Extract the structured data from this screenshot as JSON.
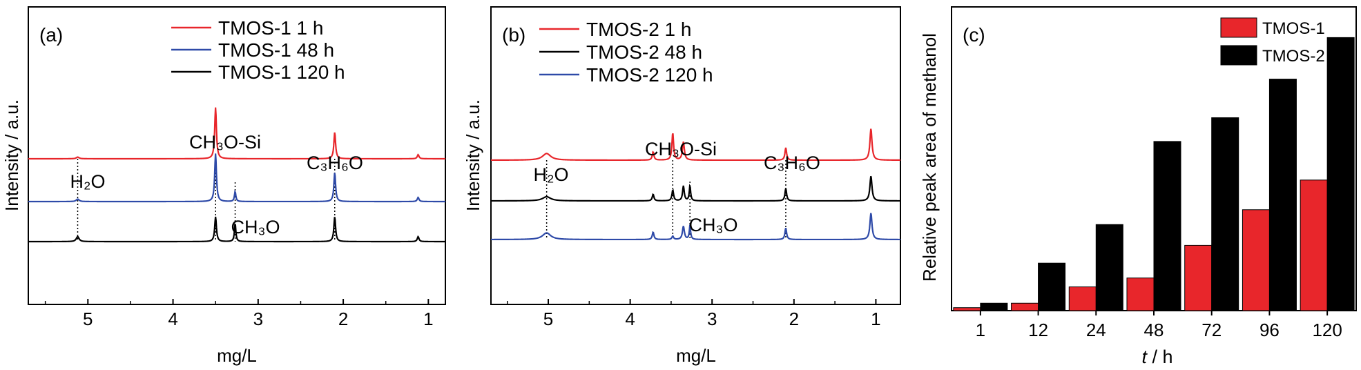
{
  "chart_data": [
    {
      "type": "line",
      "panel_label": "(a)",
      "xlabel": "mg/L",
      "ylabel": "Intensity / a.u.",
      "xlim": [
        5.7,
        0.8
      ],
      "x_reversed": true,
      "x_ticks": [
        5,
        4,
        3,
        2,
        1
      ],
      "y_ticks": "none",
      "grid": false,
      "legend_position": "top-right",
      "series": [
        {
          "name": "TMOS-1 1 h",
          "color": "#e8262b",
          "peaks": [
            {
              "x": 5.12,
              "h": 0.02,
              "w": 0.02
            },
            {
              "x": 3.5,
              "h": 0.62,
              "w": 0.012
            },
            {
              "x": 2.1,
              "h": 0.32,
              "w": 0.012
            },
            {
              "x": 1.12,
              "h": 0.05,
              "w": 0.012
            }
          ]
        },
        {
          "name": "TMOS-1 48 h",
          "color": "#2e4aa8",
          "peaks": [
            {
              "x": 5.12,
              "h": 0.03,
              "w": 0.02
            },
            {
              "x": 3.5,
              "h": 0.58,
              "w": 0.012
            },
            {
              "x": 3.27,
              "h": 0.12,
              "w": 0.01
            },
            {
              "x": 2.1,
              "h": 0.35,
              "w": 0.012
            },
            {
              "x": 1.12,
              "h": 0.05,
              "w": 0.012
            }
          ]
        },
        {
          "name": "TMOS-1 120 h",
          "color": "#000000",
          "peaks": [
            {
              "x": 5.12,
              "h": 0.06,
              "w": 0.02
            },
            {
              "x": 3.5,
              "h": 0.3,
              "w": 0.012
            },
            {
              "x": 3.27,
              "h": 0.22,
              "w": 0.01
            },
            {
              "x": 2.1,
              "h": 0.3,
              "w": 0.012
            },
            {
              "x": 1.12,
              "h": 0.06,
              "w": 0.012
            }
          ]
        }
      ],
      "annotations": [
        {
          "text": "H₂O",
          "x": 5.12
        },
        {
          "text": "CH₃O-Si",
          "x": 3.5
        },
        {
          "text": "C₃H₆O",
          "x": 2.1
        },
        {
          "text": "CH₃O",
          "x": 3.27
        }
      ]
    },
    {
      "type": "line",
      "panel_label": "(b)",
      "xlabel": "mg/L",
      "ylabel": "Intensity / a.u.",
      "xlim": [
        5.7,
        0.7
      ],
      "x_reversed": true,
      "x_ticks": [
        5,
        4,
        3,
        2,
        1
      ],
      "y_ticks": "none",
      "grid": false,
      "legend_position": "top-right",
      "series": [
        {
          "name": "TMOS-2 1 h",
          "color": "#e8262b",
          "peaks": [
            {
              "x": 5.02,
              "h": 0.08,
              "w": 0.06
            },
            {
              "x": 3.72,
              "h": 0.1,
              "w": 0.012
            },
            {
              "x": 3.48,
              "h": 0.33,
              "w": 0.012
            },
            {
              "x": 3.35,
              "h": 0.22,
              "w": 0.014
            },
            {
              "x": 2.1,
              "h": 0.15,
              "w": 0.012
            },
            {
              "x": 1.06,
              "h": 0.38,
              "w": 0.015
            }
          ]
        },
        {
          "name": "TMOS-2 48 h",
          "color": "#000000",
          "peaks": [
            {
              "x": 5.02,
              "h": 0.05,
              "w": 0.06
            },
            {
              "x": 3.72,
              "h": 0.08,
              "w": 0.012
            },
            {
              "x": 3.48,
              "h": 0.13,
              "w": 0.012
            },
            {
              "x": 3.35,
              "h": 0.18,
              "w": 0.012
            },
            {
              "x": 3.27,
              "h": 0.18,
              "w": 0.01
            },
            {
              "x": 2.1,
              "h": 0.15,
              "w": 0.012
            },
            {
              "x": 1.06,
              "h": 0.3,
              "w": 0.015
            }
          ]
        },
        {
          "name": "TMOS-2 120 h",
          "color": "#2e4aa8",
          "peaks": [
            {
              "x": 5.02,
              "h": 0.08,
              "w": 0.06
            },
            {
              "x": 3.72,
              "h": 0.09,
              "w": 0.012
            },
            {
              "x": 3.48,
              "h": 0.04,
              "w": 0.012
            },
            {
              "x": 3.35,
              "h": 0.16,
              "w": 0.014
            },
            {
              "x": 3.27,
              "h": 0.16,
              "w": 0.01
            },
            {
              "x": 2.1,
              "h": 0.14,
              "w": 0.012
            },
            {
              "x": 1.06,
              "h": 0.32,
              "w": 0.015
            }
          ]
        }
      ],
      "annotations": [
        {
          "text": "H₂O",
          "x": 5.02
        },
        {
          "text": "CH₃O-Si",
          "x": 3.48
        },
        {
          "text": "C₃H₆O",
          "x": 2.1
        },
        {
          "text": "CH₃O",
          "x": 3.27
        }
      ]
    },
    {
      "type": "bar",
      "panel_label": "(c)",
      "xlabel": "t / h",
      "ylabel": "Relative peak area of methanol",
      "categories": [
        "1",
        "12",
        "24",
        "48",
        "72",
        "96",
        "120"
      ],
      "ylim": [
        0,
        100
      ],
      "y_ticks": "none",
      "grid": false,
      "legend_position": "top-right",
      "series": [
        {
          "name": "TMOS-1",
          "color": "#e8262b",
          "values": [
            1,
            2.5,
            8,
            11,
            22,
            34,
            44
          ]
        },
        {
          "name": "TMOS-2",
          "color": "#000000",
          "values": [
            2.5,
            16,
            29,
            57,
            65,
            78,
            92
          ]
        }
      ]
    }
  ]
}
